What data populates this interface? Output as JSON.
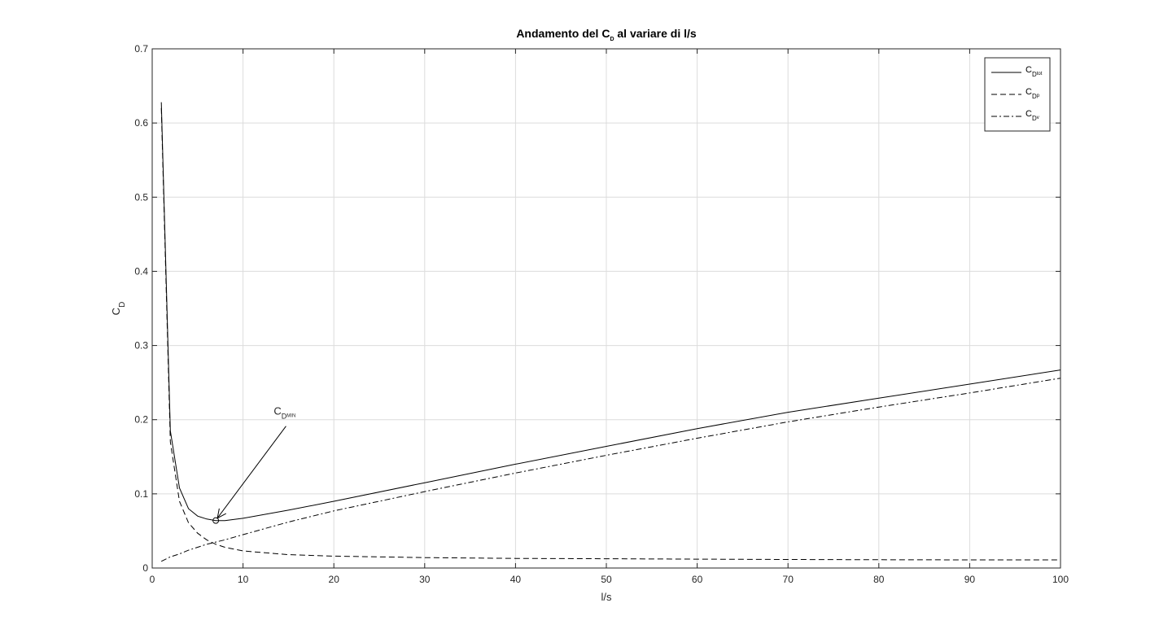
{
  "chart_data": {
    "type": "line",
    "title": {
      "main": "Andamento del C",
      "sub": "D",
      "rest": " al variare di l/s"
    },
    "xlabel": "l/s",
    "ylabel": {
      "main": "C",
      "sub": "D"
    },
    "xlim": [
      0,
      100
    ],
    "ylim": [
      0,
      0.7
    ],
    "xticks": [
      0,
      10,
      20,
      30,
      40,
      50,
      60,
      70,
      80,
      90,
      100
    ],
    "yticks": [
      0,
      0.1,
      0.2,
      0.3,
      0.4,
      0.5,
      0.6,
      0.7
    ],
    "xtick_labels": [
      "0",
      "10",
      "20",
      "30",
      "40",
      "50",
      "60",
      "70",
      "80",
      "90",
      "100"
    ],
    "ytick_labels": [
      "0",
      "0.1",
      "0.2",
      "0.3",
      "0.4",
      "0.5",
      "0.6",
      "0.7"
    ],
    "grid": true,
    "legend_position": "top-right",
    "series": [
      {
        "name": "C_D_tot",
        "label_main": "C",
        "label_sub": "D",
        "label_subsub": "tot",
        "style": "solid",
        "x": [
          1,
          2,
          3,
          4,
          5,
          6,
          7,
          8,
          10,
          15,
          20,
          30,
          40,
          50,
          60,
          70,
          80,
          90,
          100
        ],
        "y": [
          0.628,
          0.185,
          0.108,
          0.08,
          0.07,
          0.066,
          0.064,
          0.064,
          0.067,
          0.078,
          0.09,
          0.115,
          0.14,
          0.164,
          0.188,
          0.21,
          0.229,
          0.248,
          0.267
        ]
      },
      {
        "name": "C_D_p",
        "label_main": "C",
        "label_sub": "D",
        "label_subsub": "p",
        "style": "dashed",
        "x": [
          1,
          2,
          3,
          4,
          5,
          6,
          7,
          8,
          10,
          15,
          20,
          30,
          40,
          50,
          60,
          70,
          80,
          90,
          100
        ],
        "y": [
          0.62,
          0.17,
          0.09,
          0.061,
          0.047,
          0.038,
          0.032,
          0.028,
          0.023,
          0.018,
          0.016,
          0.014,
          0.013,
          0.0125,
          0.012,
          0.0115,
          0.0112,
          0.011,
          0.011
        ]
      },
      {
        "name": "C_D_v",
        "label_main": "C",
        "label_sub": "D",
        "label_subsub": "v",
        "style": "dashdot",
        "x": [
          1,
          2,
          3,
          4,
          5,
          6,
          7,
          8,
          10,
          15,
          20,
          30,
          40,
          50,
          60,
          70,
          80,
          90,
          100
        ],
        "y": [
          0.009,
          0.015,
          0.019,
          0.024,
          0.028,
          0.032,
          0.035,
          0.038,
          0.045,
          0.062,
          0.077,
          0.103,
          0.128,
          0.152,
          0.175,
          0.197,
          0.217,
          0.236,
          0.256
        ]
      }
    ],
    "annotation": {
      "label_main": "C",
      "label_sub": "D",
      "label_subsub": "MIN",
      "point": {
        "x": 7,
        "y": 0.064
      },
      "text_at": {
        "x": 15,
        "y": 0.2
      }
    }
  }
}
